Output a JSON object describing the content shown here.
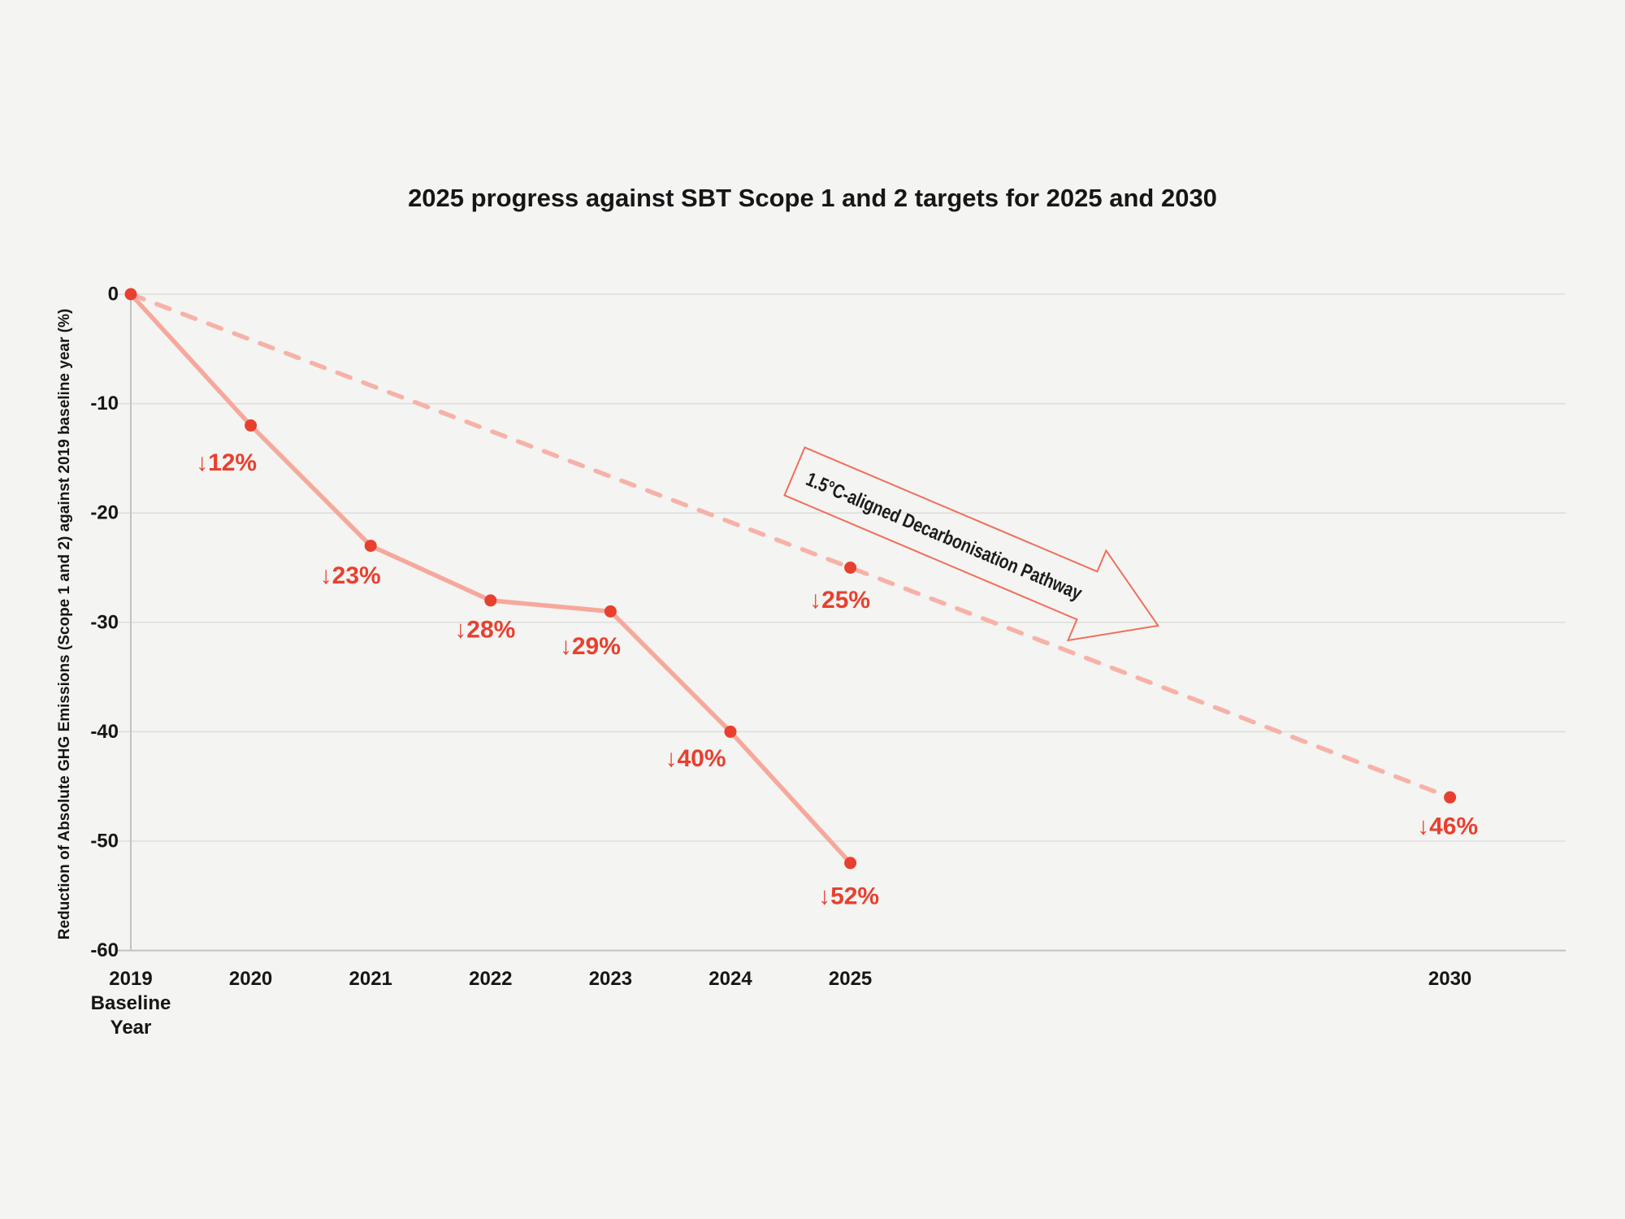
{
  "colors": {
    "background": "#f4f4f2",
    "grid": "#dddddb",
    "axis": "#c2c2c0",
    "actual_line": "#f6a89d",
    "pathway_line": "#f6b2a8",
    "point": "#e8402f",
    "point_label": "#e8402f",
    "arrow_outline": "#ef6f5b",
    "text": "#161616"
  },
  "chart_data": {
    "type": "line",
    "title": "2025 progress against SBT Scope 1 and 2 targets for 2025 and 2030",
    "xlabel": "",
    "ylabel": "Reduction of Absolute GHG Emissions (Scope 1 and 2) against 2019 baseline year (%)",
    "ylim": [
      -60,
      0
    ],
    "xlim": [
      2019,
      2031
    ],
    "grid": "horizontal gridlines on",
    "legend": "none",
    "y_ticks": [
      {
        "value": 0,
        "label": "0"
      },
      {
        "value": -10,
        "label": "-10"
      },
      {
        "value": -20,
        "label": "-20"
      },
      {
        "value": -30,
        "label": "-30"
      },
      {
        "value": -40,
        "label": "-40"
      },
      {
        "value": -50,
        "label": "-50"
      },
      {
        "value": -60,
        "label": "-60"
      }
    ],
    "x_ticks": [
      {
        "year": 2019,
        "label": "2019",
        "sublabels": [
          "Baseline",
          "Year"
        ]
      },
      {
        "year": 2020,
        "label": "2020"
      },
      {
        "year": 2021,
        "label": "2021"
      },
      {
        "year": 2022,
        "label": "2022"
      },
      {
        "year": 2023,
        "label": "2023"
      },
      {
        "year": 2024,
        "label": "2024"
      },
      {
        "year": 2025,
        "label": "2025"
      },
      {
        "year": 2030,
        "label": "2030"
      }
    ],
    "series": [
      {
        "id": "actual",
        "style": "solid",
        "points": [
          {
            "year": 2019,
            "value": 0,
            "label": ""
          },
          {
            "year": 2020,
            "value": -12,
            "label": "↓12%"
          },
          {
            "year": 2021,
            "value": -23,
            "label": "↓23%"
          },
          {
            "year": 2022,
            "value": -28,
            "label": "↓28%"
          },
          {
            "year": 2023,
            "value": -29,
            "label": "↓29%"
          },
          {
            "year": 2024,
            "value": -40,
            "label": "↓40%"
          },
          {
            "year": 2025,
            "value": -52,
            "label": "↓52%"
          }
        ]
      },
      {
        "id": "pathway",
        "style": "dashed",
        "annotation": "1.5°C-aligned Decarbonisation Pathway",
        "points": [
          {
            "year": 2019,
            "value": 0,
            "label": "",
            "marker": false
          },
          {
            "year": 2025,
            "value": -25,
            "label": "↓25%"
          },
          {
            "year": 2030,
            "value": -46,
            "label": "↓46%"
          }
        ]
      }
    ]
  }
}
